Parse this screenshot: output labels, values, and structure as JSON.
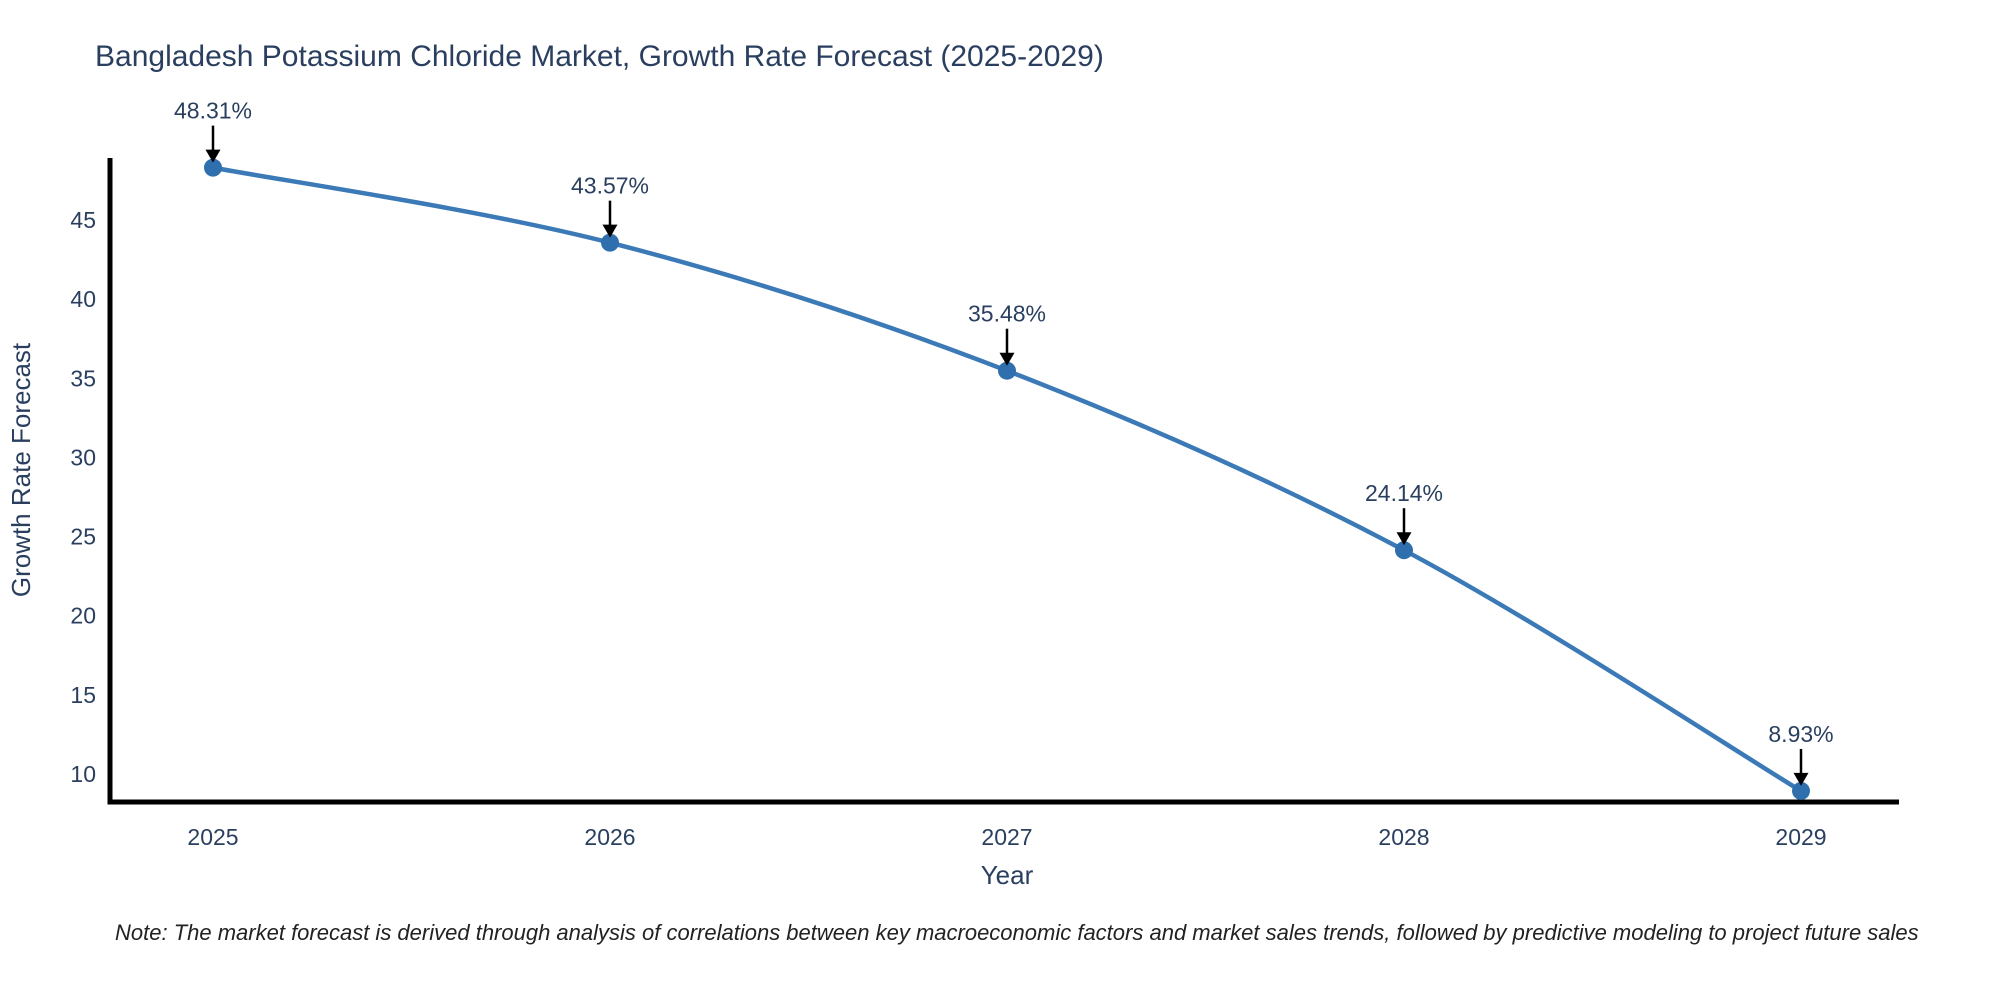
{
  "note": "Note: The market forecast is derived through analysis of correlations between key macroeconomic factors and market sales trends, followed by predictive modeling to project future sales",
  "chart_data": {
    "type": "line",
    "title": "Bangladesh Potassium Chloride Market, Growth Rate Forecast (2025-2029)",
    "xlabel": "Year",
    "ylabel": "Growth Rate Forecast",
    "categories": [
      "2025",
      "2026",
      "2027",
      "2028",
      "2029"
    ],
    "series": [
      {
        "name": "Growth Rate Forecast",
        "values": [
          48.31,
          43.57,
          35.48,
          24.14,
          8.93
        ],
        "point_labels": [
          "48.31%",
          "43.57%",
          "35.48%",
          "24.14%",
          "8.93%"
        ]
      }
    ],
    "yticks": [
      10,
      15,
      20,
      25,
      30,
      35,
      40,
      45
    ],
    "ylim": [
      8.2,
      48.9
    ],
    "grid": false,
    "legend_position": "none",
    "line_shape": "spline",
    "colors": {
      "line": "#3b7ab7",
      "marker": "#2f6fae",
      "axis_line": "#000000",
      "chart_text": "#2a3f5f",
      "annotation_arrow": "#000000",
      "note_text": "#222222",
      "background": "#ffffff"
    }
  }
}
